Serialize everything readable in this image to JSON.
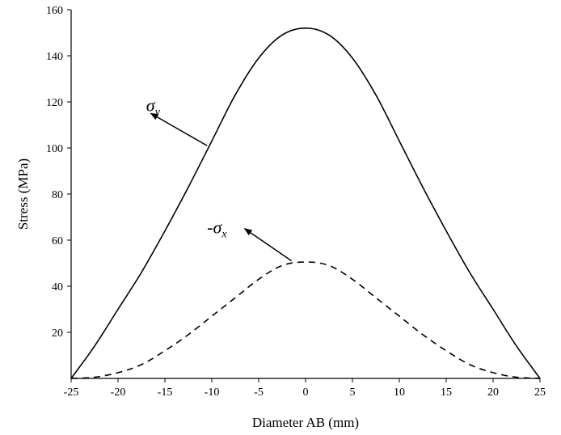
{
  "chart_data": {
    "type": "line",
    "xlabel": "Diameter AB (mm)",
    "ylabel": "Stress (MPa)",
    "xlim": [
      -25,
      25
    ],
    "ylim": [
      0,
      160
    ],
    "x_ticks": [
      "-25",
      "-20",
      "-15",
      "-10",
      "-5",
      "0",
      "5",
      "10",
      "15",
      "20",
      "25"
    ],
    "y_ticks": [
      "20",
      "40",
      "60",
      "80",
      "100",
      "120",
      "140",
      "160"
    ],
    "grid": false,
    "legend": "none",
    "series": [
      {
        "label_symbol": "σ",
        "label_sub": "y",
        "line_style": "solid",
        "color": "#000000",
        "x": [
          -25,
          -22.5,
          -20,
          -17.5,
          -15,
          -12.5,
          -10,
          -7.5,
          -5,
          -2.5,
          0,
          2.5,
          5,
          7.5,
          10,
          12.5,
          15,
          17.5,
          20,
          22.5,
          25
        ],
        "y": [
          0,
          14,
          30,
          46,
          64,
          83,
          103,
          123,
          139,
          149,
          152,
          149,
          139,
          123,
          103,
          83,
          64,
          46,
          30,
          14,
          0
        ]
      },
      {
        "label_symbol": "-σ",
        "label_sub": "x",
        "line_style": "dashed",
        "color": "#000000",
        "x": [
          -25,
          -22.5,
          -20,
          -17.5,
          -15,
          -12.5,
          -10,
          -7.5,
          -5,
          -2.5,
          0,
          2.5,
          5,
          7.5,
          10,
          12.5,
          15,
          17.5,
          20,
          22.5,
          25
        ],
        "y": [
          0,
          0.5,
          2.5,
          6,
          12,
          19,
          27,
          35,
          43,
          49,
          50.5,
          49,
          43,
          35,
          27,
          19,
          12,
          6,
          2.5,
          0.5,
          0
        ]
      }
    ],
    "annotations": [
      {
        "series_index": 0,
        "text_x": -17,
        "text_y": 116,
        "arrow_from": [
          -10.5,
          101
        ],
        "arrow_to": [
          -16.5,
          115
        ]
      },
      {
        "series_index": 1,
        "text_x": -10.5,
        "text_y": 63,
        "arrow_from": [
          -1.5,
          51
        ],
        "arrow_to": [
          -6.5,
          65
        ]
      }
    ]
  }
}
